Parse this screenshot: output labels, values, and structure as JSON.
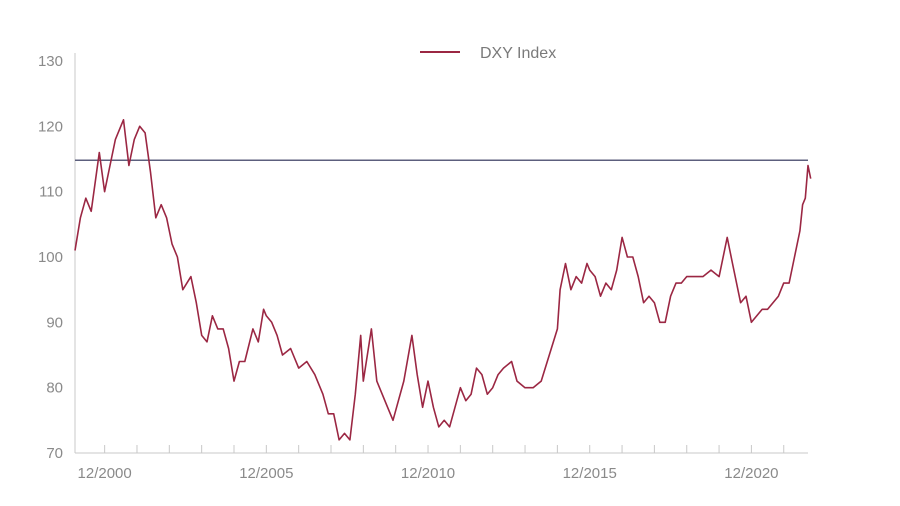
{
  "chart_data": {
    "type": "line",
    "title": "",
    "xlabel": "",
    "ylabel": "",
    "ylim": [
      70,
      130
    ],
    "xlim": [
      "2000-01",
      "2022-09"
    ],
    "yticks": [
      70,
      80,
      90,
      100,
      110,
      120,
      130
    ],
    "ytick_labels": [
      "70",
      "80",
      "90",
      "100",
      "110",
      "120",
      "130"
    ],
    "xtick_labels": [
      {
        "date": "2000-12",
        "label": "12/2000"
      },
      {
        "date": "2005-12",
        "label": "12/2005"
      },
      {
        "date": "2010-12",
        "label": "12/2010"
      },
      {
        "date": "2015-12",
        "label": "12/2015"
      },
      {
        "date": "2020-12",
        "label": "12/2020"
      }
    ],
    "minor_ticks": [
      "2000-12",
      "2001-12",
      "2002-12",
      "2003-12",
      "2004-12",
      "2005-12",
      "2006-12",
      "2007-12",
      "2008-12",
      "2009-12",
      "2010-12",
      "2011-12",
      "2012-12",
      "2013-12",
      "2014-12",
      "2015-12",
      "2016-12",
      "2017-12",
      "2018-12",
      "2019-12",
      "2020-12",
      "2021-12"
    ],
    "legend": {
      "position": "top",
      "label": "DXY Index"
    },
    "reference_line": {
      "value": 114.8
    },
    "grid": false,
    "colors": {
      "series": "#9b2743",
      "reference": "#5c5f7d",
      "axis": "#c8c8c8",
      "text": "#8a8a8a"
    },
    "series": [
      {
        "name": "DXY Index",
        "points": [
          [
            "2000-01",
            101
          ],
          [
            "2000-03",
            106
          ],
          [
            "2000-05",
            109
          ],
          [
            "2000-07",
            107
          ],
          [
            "2000-09",
            113
          ],
          [
            "2000-10",
            116
          ],
          [
            "2000-12",
            110
          ],
          [
            "2001-02",
            114
          ],
          [
            "2001-04",
            118
          ],
          [
            "2001-06",
            120
          ],
          [
            "2001-07",
            121
          ],
          [
            "2001-09",
            114
          ],
          [
            "2001-11",
            118
          ],
          [
            "2002-01",
            120
          ],
          [
            "2002-03",
            119
          ],
          [
            "2002-05",
            113
          ],
          [
            "2002-07",
            106
          ],
          [
            "2002-09",
            108
          ],
          [
            "2002-11",
            106
          ],
          [
            "2003-01",
            102
          ],
          [
            "2003-03",
            100
          ],
          [
            "2003-05",
            95
          ],
          [
            "2003-08",
            97
          ],
          [
            "2003-10",
            93
          ],
          [
            "2003-12",
            88
          ],
          [
            "2004-02",
            87
          ],
          [
            "2004-04",
            91
          ],
          [
            "2004-06",
            89
          ],
          [
            "2004-08",
            89
          ],
          [
            "2004-10",
            86
          ],
          [
            "2004-12",
            81
          ],
          [
            "2005-02",
            84
          ],
          [
            "2005-04",
            84
          ],
          [
            "2005-07",
            89
          ],
          [
            "2005-09",
            87
          ],
          [
            "2005-11",
            92
          ],
          [
            "2005-12",
            91
          ],
          [
            "2006-02",
            90
          ],
          [
            "2006-04",
            88
          ],
          [
            "2006-06",
            85
          ],
          [
            "2006-09",
            86
          ],
          [
            "2006-12",
            83
          ],
          [
            "2007-03",
            84
          ],
          [
            "2007-06",
            82
          ],
          [
            "2007-09",
            79
          ],
          [
            "2007-11",
            76
          ],
          [
            "2008-01",
            76
          ],
          [
            "2008-03",
            72
          ],
          [
            "2008-05",
            73
          ],
          [
            "2008-07",
            72
          ],
          [
            "2008-09",
            79
          ],
          [
            "2008-11",
            88
          ],
          [
            "2008-12",
            81
          ],
          [
            "2009-03",
            89
          ],
          [
            "2009-05",
            81
          ],
          [
            "2009-07",
            79
          ],
          [
            "2009-09",
            77
          ],
          [
            "2009-11",
            75
          ],
          [
            "2010-01",
            78
          ],
          [
            "2010-03",
            81
          ],
          [
            "2010-06",
            88
          ],
          [
            "2010-08",
            82
          ],
          [
            "2010-10",
            77
          ],
          [
            "2010-12",
            81
          ],
          [
            "2011-02",
            77
          ],
          [
            "2011-04",
            74
          ],
          [
            "2011-06",
            75
          ],
          [
            "2011-08",
            74
          ],
          [
            "2011-10",
            77
          ],
          [
            "2011-12",
            80
          ],
          [
            "2012-02",
            78
          ],
          [
            "2012-04",
            79
          ],
          [
            "2012-06",
            83
          ],
          [
            "2012-08",
            82
          ],
          [
            "2012-10",
            79
          ],
          [
            "2012-12",
            80
          ],
          [
            "2013-02",
            82
          ],
          [
            "2013-04",
            83
          ],
          [
            "2013-07",
            84
          ],
          [
            "2013-09",
            81
          ],
          [
            "2013-12",
            80
          ],
          [
            "2014-03",
            80
          ],
          [
            "2014-06",
            81
          ],
          [
            "2014-09",
            85
          ],
          [
            "2014-12",
            89
          ],
          [
            "2015-01",
            95
          ],
          [
            "2015-03",
            99
          ],
          [
            "2015-05",
            95
          ],
          [
            "2015-07",
            97
          ],
          [
            "2015-09",
            96
          ],
          [
            "2015-11",
            99
          ],
          [
            "2015-12",
            98
          ],
          [
            "2016-02",
            97
          ],
          [
            "2016-04",
            94
          ],
          [
            "2016-06",
            96
          ],
          [
            "2016-08",
            95
          ],
          [
            "2016-10",
            98
          ],
          [
            "2016-12",
            103
          ],
          [
            "2017-02",
            100
          ],
          [
            "2017-04",
            100
          ],
          [
            "2017-06",
            97
          ],
          [
            "2017-08",
            93
          ],
          [
            "2017-10",
            94
          ],
          [
            "2017-12",
            93
          ],
          [
            "2018-02",
            90
          ],
          [
            "2018-04",
            90
          ],
          [
            "2018-06",
            94
          ],
          [
            "2018-08",
            96
          ],
          [
            "2018-10",
            96
          ],
          [
            "2018-12",
            97
          ],
          [
            "2019-03",
            97
          ],
          [
            "2019-06",
            97
          ],
          [
            "2019-09",
            98
          ],
          [
            "2019-12",
            97
          ],
          [
            "2020-03",
            103
          ],
          [
            "2020-05",
            99
          ],
          [
            "2020-08",
            93
          ],
          [
            "2020-10",
            94
          ],
          [
            "2020-12",
            90
          ],
          [
            "2021-02",
            91
          ],
          [
            "2021-04",
            92
          ],
          [
            "2021-06",
            92
          ],
          [
            "2021-08",
            93
          ],
          [
            "2021-10",
            94
          ],
          [
            "2021-12",
            96
          ],
          [
            "2022-02",
            96
          ],
          [
            "2022-04",
            100
          ],
          [
            "2022-06",
            104
          ],
          [
            "2022-07",
            108
          ],
          [
            "2022-08",
            109
          ],
          [
            "2022-09",
            114
          ],
          [
            "2022-10",
            112
          ]
        ]
      }
    ]
  }
}
